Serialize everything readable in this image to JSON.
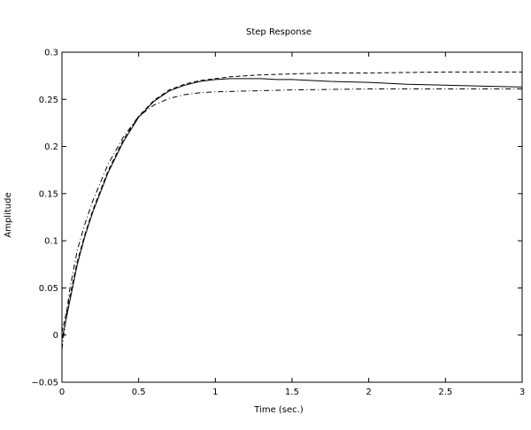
{
  "chart_data": {
    "type": "line",
    "title": "Step Response",
    "xlabel": "Time (sec.)",
    "ylabel": "Amplitude",
    "xlim": [
      0,
      3
    ],
    "ylim": [
      -0.05,
      0.3
    ],
    "xticks": [
      0,
      0.5,
      1,
      1.5,
      2,
      2.5,
      3
    ],
    "xtick_labels": [
      "0",
      "0.5",
      "1",
      "1.5",
      "2",
      "2.5",
      "3"
    ],
    "yticks": [
      -0.05,
      0,
      0.05,
      0.1,
      0.15,
      0.2,
      0.25,
      0.3
    ],
    "ytick_labels": [
      "−0.05",
      "0",
      "0.05",
      "0.1",
      "0.15",
      "0.2",
      "0.25",
      "0.3"
    ],
    "grid": false,
    "series": [
      {
        "style": "solid",
        "color": "#000000",
        "x": [
          0,
          0.05,
          0.1,
          0.15,
          0.2,
          0.3,
          0.4,
          0.5,
          0.6,
          0.7,
          0.8,
          0.9,
          1.0,
          1.1,
          1.2,
          1.3,
          1.4,
          1.5,
          1.75,
          2.0,
          2.25,
          2.5,
          2.75,
          3.0
        ],
        "y": [
          -0.005,
          0.035,
          0.075,
          0.105,
          0.13,
          0.172,
          0.205,
          0.231,
          0.248,
          0.259,
          0.265,
          0.269,
          0.271,
          0.272,
          0.272,
          0.272,
          0.271,
          0.271,
          0.269,
          0.268,
          0.266,
          0.265,
          0.264,
          0.263
        ]
      },
      {
        "style": "dashed",
        "color": "#000000",
        "x": [
          0,
          0.05,
          0.1,
          0.15,
          0.2,
          0.3,
          0.4,
          0.5,
          0.6,
          0.7,
          0.8,
          0.9,
          1.0,
          1.1,
          1.2,
          1.3,
          1.5,
          1.75,
          2.0,
          2.5,
          3.0
        ],
        "y": [
          0.003,
          0.04,
          0.078,
          0.107,
          0.132,
          0.174,
          0.207,
          0.232,
          0.249,
          0.26,
          0.266,
          0.27,
          0.272,
          0.274,
          0.275,
          0.276,
          0.277,
          0.278,
          0.278,
          0.279,
          0.279
        ]
      },
      {
        "style": "dashdot",
        "color": "#000000",
        "x": [
          0,
          0.05,
          0.1,
          0.15,
          0.2,
          0.3,
          0.4,
          0.5,
          0.6,
          0.7,
          0.8,
          0.9,
          1.0,
          1.25,
          1.5,
          2.0,
          2.5,
          3.0
        ],
        "y": [
          -0.015,
          0.048,
          0.09,
          0.118,
          0.142,
          0.181,
          0.21,
          0.232,
          0.244,
          0.251,
          0.255,
          0.257,
          0.258,
          0.259,
          0.26,
          0.261,
          0.261,
          0.261
        ]
      }
    ]
  }
}
